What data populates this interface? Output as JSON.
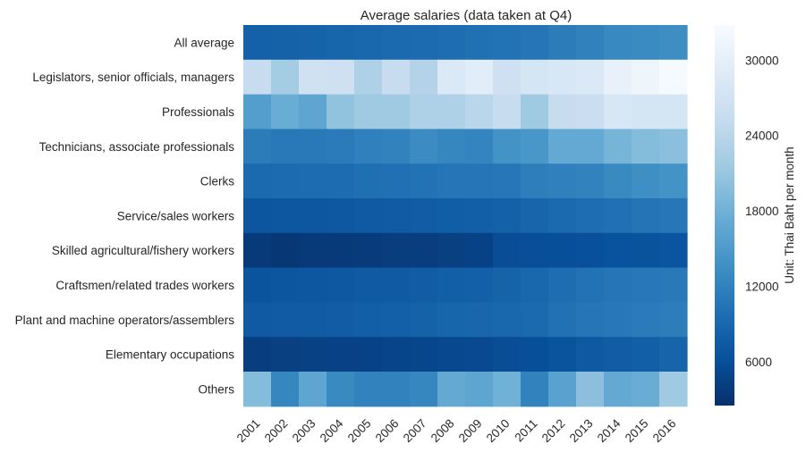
{
  "chart_data": {
    "type": "heatmap",
    "title": "Average salaries (data taken at Q4)",
    "xlabel": "",
    "ylabel": "",
    "x": [
      "2001",
      "2002",
      "2003",
      "2004",
      "2005",
      "2006",
      "2007",
      "2008",
      "2009",
      "2010",
      "2011",
      "2012",
      "2013",
      "2014",
      "2015",
      "2016"
    ],
    "y": [
      "All average",
      "Legislators, senior officials, managers",
      "Professionals",
      "Technicians, associate professionals",
      "Clerks",
      "Service/sales workers",
      "Skilled agricultural/fishery workers",
      "Craftsmen/related trades workers",
      "Plant and machine operators/assemblers",
      "Elementary occupations",
      "Others"
    ],
    "values": [
      [
        8200,
        8300,
        8400,
        8600,
        8900,
        9100,
        9300,
        9600,
        9900,
        10200,
        10600,
        11300,
        11900,
        12700,
        13100,
        13400
      ],
      [
        25500,
        22000,
        26800,
        26500,
        23000,
        25500,
        23500,
        28500,
        29500,
        26500,
        27500,
        28000,
        28500,
        30500,
        31500,
        32500
      ],
      [
        15500,
        17500,
        16500,
        20500,
        21500,
        21500,
        23000,
        23000,
        24000,
        25500,
        21500,
        25500,
        26000,
        28000,
        27500,
        27500
      ],
      [
        11300,
        11000,
        11000,
        11200,
        11800,
        12000,
        13200,
        12500,
        12300,
        14000,
        14500,
        17000,
        17000,
        18500,
        19500,
        20000
      ],
      [
        9200,
        9300,
        9400,
        9500,
        9800,
        10000,
        10200,
        10500,
        10500,
        10800,
        11600,
        11800,
        12000,
        12900,
        13500,
        14000
      ],
      [
        6900,
        7000,
        7000,
        7100,
        7300,
        7500,
        7600,
        7800,
        8000,
        8200,
        8700,
        9100,
        9600,
        10000,
        10400,
        10800
      ],
      [
        3500,
        3300,
        3600,
        3600,
        3800,
        4000,
        4100,
        4300,
        4600,
        5800,
        6000,
        6100,
        6200,
        6400,
        6500,
        6700
      ],
      [
        6600,
        6900,
        7000,
        7100,
        7300,
        7400,
        7600,
        7900,
        8100,
        8400,
        8900,
        9600,
        10200,
        10500,
        10900,
        11000
      ],
      [
        7400,
        7500,
        7500,
        7600,
        7900,
        8100,
        8300,
        8600,
        8800,
        8900,
        9200,
        10100,
        10500,
        10900,
        11200,
        11400
      ],
      [
        4100,
        4300,
        4400,
        4500,
        4600,
        4800,
        5000,
        5200,
        5400,
        5800,
        6100,
        6600,
        7200,
        7600,
        8000,
        8500
      ],
      [
        19500,
        12500,
        16500,
        13000,
        12000,
        12000,
        12500,
        17000,
        16500,
        18000,
        12000,
        16000,
        20000,
        17000,
        17500,
        21500
      ]
    ],
    "colorbar": {
      "label": "Unit: Thai Baht per month",
      "ticks": [
        6000,
        12000,
        18000,
        24000,
        30000
      ],
      "range": [
        2500,
        32800
      ],
      "colormap": "Blues_r"
    },
    "grid": false
  }
}
